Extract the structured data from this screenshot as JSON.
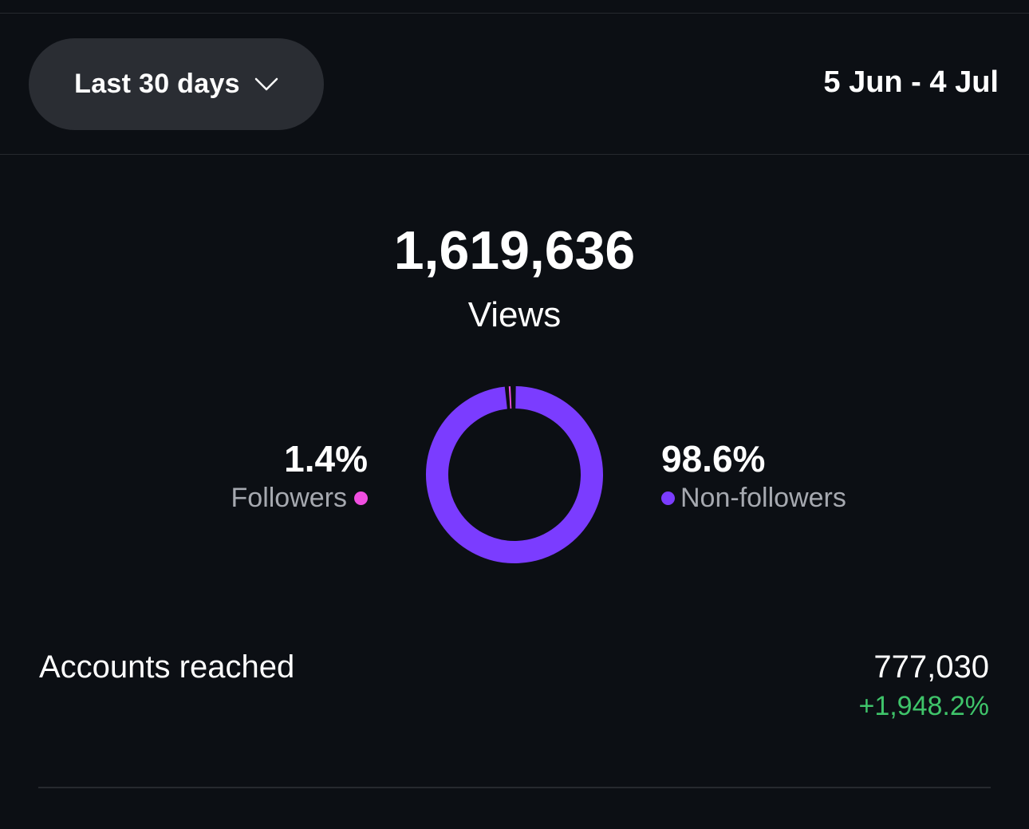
{
  "header": {
    "range_label": "Last 30 days",
    "date_range": "5 Jun - 4 Jul"
  },
  "views": {
    "total": "1,619,636",
    "label": "Views"
  },
  "chart_data": {
    "type": "pie",
    "style": "donut",
    "categories": [
      "Followers",
      "Non-followers"
    ],
    "values": [
      1.4,
      98.6
    ],
    "value_labels": [
      "1.4%",
      "98.6%"
    ],
    "colors": [
      "#f04ee0",
      "#7b3cff"
    ]
  },
  "accounts_reached": {
    "label": "Accounts reached",
    "value": "777,030",
    "change": "+1,948.2%",
    "change_color": "#3fc46a"
  }
}
